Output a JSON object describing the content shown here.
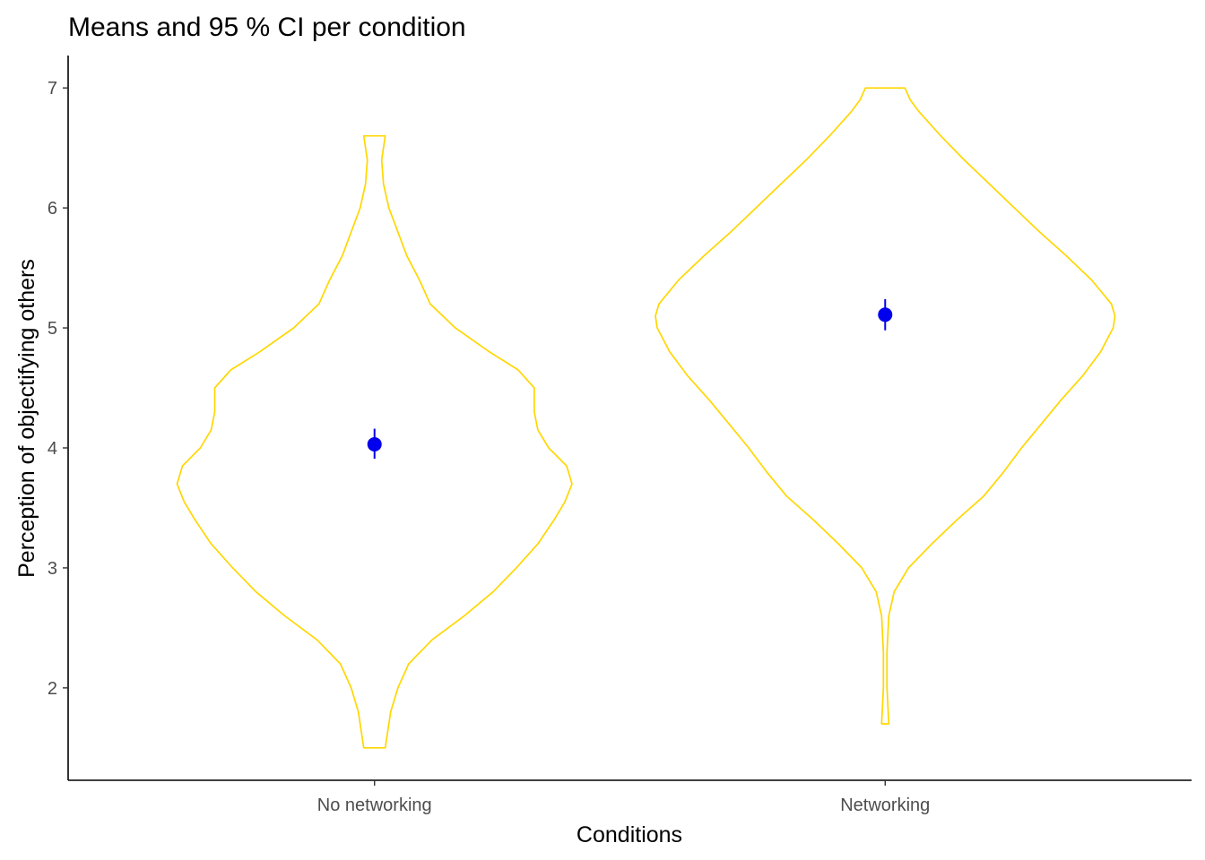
{
  "chart_data": {
    "type": "violin",
    "title": "Means and 95 % CI per condition",
    "xlabel": "Conditions",
    "ylabel": "Perception of objectifying others",
    "categories": [
      "No networking",
      "Networking"
    ],
    "ylim": [
      1.23,
      7.27
    ],
    "yticks": [
      "2",
      "3",
      "4",
      "5",
      "6",
      "7"
    ],
    "grid": false,
    "colors": {
      "violin": "#FFD700",
      "point": "#0000EE"
    },
    "series": [
      {
        "means": [
          4.03,
          5.11
        ],
        "ci_low": [
          3.91,
          4.98
        ],
        "ci_high": [
          4.16,
          5.24
        ]
      }
    ],
    "violins": [
      {
        "ymin": 1.5,
        "ymax": 6.6,
        "density": [
          [
            1.5,
            0.06
          ],
          [
            1.8,
            0.09
          ],
          [
            2.0,
            0.13
          ],
          [
            2.2,
            0.19
          ],
          [
            2.4,
            0.32
          ],
          [
            2.6,
            0.5
          ],
          [
            2.8,
            0.66
          ],
          [
            3.0,
            0.79
          ],
          [
            3.2,
            0.91
          ],
          [
            3.4,
            1.0
          ],
          [
            3.55,
            1.06
          ],
          [
            3.7,
            1.1
          ],
          [
            3.85,
            1.07
          ],
          [
            4.0,
            0.97
          ],
          [
            4.15,
            0.91
          ],
          [
            4.3,
            0.89
          ],
          [
            4.5,
            0.89
          ],
          [
            4.65,
            0.8
          ],
          [
            4.8,
            0.64
          ],
          [
            5.0,
            0.45
          ],
          [
            5.2,
            0.31
          ],
          [
            5.4,
            0.25
          ],
          [
            5.6,
            0.18
          ],
          [
            5.8,
            0.13
          ],
          [
            6.0,
            0.08
          ],
          [
            6.2,
            0.05
          ],
          [
            6.4,
            0.04
          ],
          [
            6.6,
            0.06
          ]
        ]
      },
      {
        "ymin": 1.7,
        "ymax": 7.0,
        "density": [
          [
            1.7,
            0.02
          ],
          [
            2.0,
            0.01
          ],
          [
            2.3,
            0.01
          ],
          [
            2.6,
            0.02
          ],
          [
            2.8,
            0.05
          ],
          [
            3.0,
            0.13
          ],
          [
            3.2,
            0.26
          ],
          [
            3.4,
            0.4
          ],
          [
            3.6,
            0.55
          ],
          [
            3.8,
            0.66
          ],
          [
            4.0,
            0.76
          ],
          [
            4.2,
            0.87
          ],
          [
            4.4,
            0.98
          ],
          [
            4.6,
            1.1
          ],
          [
            4.8,
            1.2
          ],
          [
            5.0,
            1.27
          ],
          [
            5.1,
            1.28
          ],
          [
            5.2,
            1.26
          ],
          [
            5.4,
            1.15
          ],
          [
            5.6,
            1.01
          ],
          [
            5.8,
            0.86
          ],
          [
            6.0,
            0.72
          ],
          [
            6.2,
            0.58
          ],
          [
            6.4,
            0.44
          ],
          [
            6.6,
            0.31
          ],
          [
            6.8,
            0.19
          ],
          [
            6.9,
            0.14
          ],
          [
            7.0,
            0.11
          ]
        ]
      }
    ]
  }
}
